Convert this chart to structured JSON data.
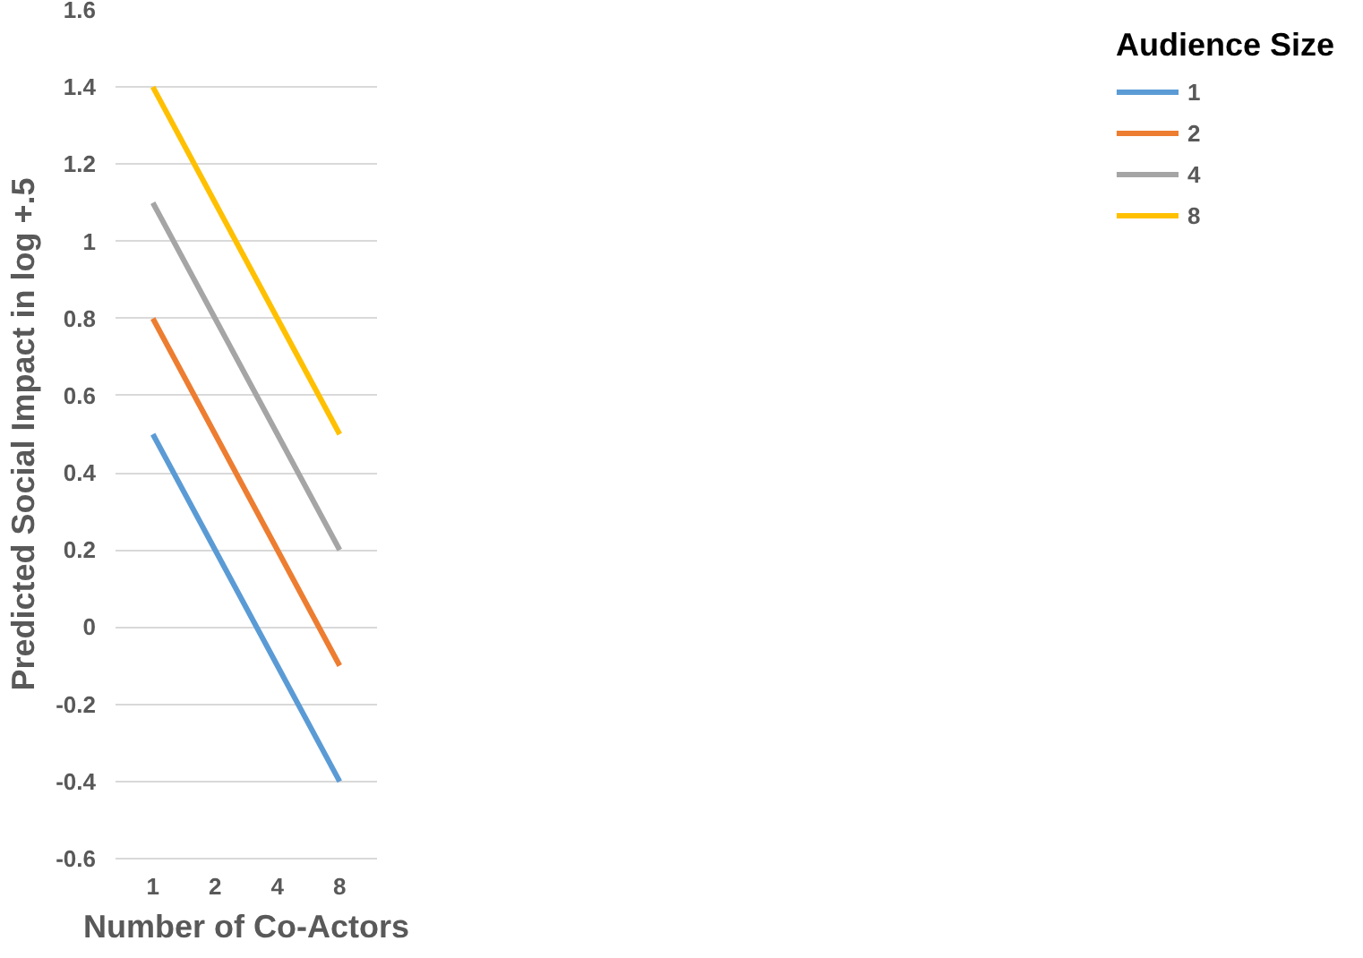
{
  "chart_data": {
    "type": "line",
    "xlabel": "Number of Co-Actors",
    "ylabel": "Predicted Social Impact in log +.5",
    "legend_title": "Audience Size",
    "categories": [
      "1",
      "2",
      "4",
      "8"
    ],
    "series": [
      {
        "name": "1",
        "color": "#5b9bd5",
        "values": [
          0.5,
          0.2,
          -0.1,
          -0.4
        ]
      },
      {
        "name": "2",
        "color": "#ed7d31",
        "values": [
          0.8,
          0.5,
          0.2,
          -0.1
        ]
      },
      {
        "name": "4",
        "color": "#a5a5a5",
        "values": [
          1.1,
          0.8,
          0.5,
          0.2
        ]
      },
      {
        "name": "8",
        "color": "#ffc000",
        "values": [
          1.4,
          1.1,
          0.8,
          0.5
        ]
      }
    ],
    "ylim": [
      -0.6,
      1.6
    ],
    "yticks": [
      -0.6,
      -0.4,
      -0.2,
      0,
      0.2,
      0.4,
      0.6,
      0.8,
      1,
      1.2,
      1.4,
      1.6
    ],
    "grid": "y",
    "legend": "right",
    "marker": "none",
    "line_style": "solid"
  }
}
